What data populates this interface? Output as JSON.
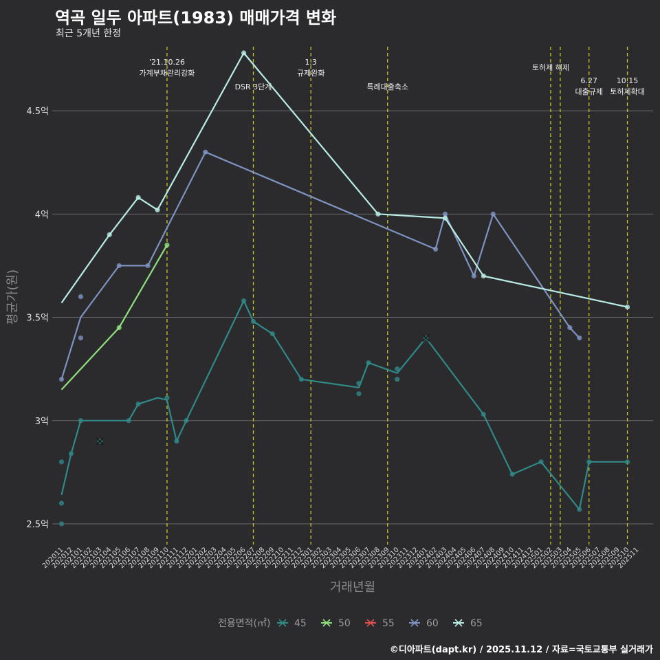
{
  "chart_data": {
    "type": "line",
    "title": "역곡 일두 아파트(1983) 매매가격 변화",
    "subtitle": "최근 5개년 한정",
    "xlabel": "거래년월",
    "ylabel": "평균가(원)",
    "caption": "©디아파트(dapt.kr) / 2025.11.12 / 자료=국토교통부 실거래가",
    "ylim": [
      2.4,
      4.83
    ],
    "yticks": [
      {
        "v": 2.5,
        "label": "2.5억"
      },
      {
        "v": 3.0,
        "label": "3억"
      },
      {
        "v": 3.5,
        "label": "3.5억"
      },
      {
        "v": 4.0,
        "label": "4억"
      },
      {
        "v": 4.5,
        "label": "4.5억"
      }
    ],
    "categories": [
      "202011",
      "202012",
      "202101",
      "202102",
      "202103",
      "202104",
      "202105",
      "202106",
      "202107",
      "202108",
      "202109",
      "202110",
      "202111",
      "202112",
      "202201",
      "202202",
      "202203",
      "202204",
      "202205",
      "202206",
      "202207",
      "202208",
      "202209",
      "202210",
      "202211",
      "202212",
      "202301",
      "202302",
      "202303",
      "202304",
      "202305",
      "202306",
      "202307",
      "202308",
      "202309",
      "202310",
      "202311",
      "202312",
      "202401",
      "202402",
      "202403",
      "202404",
      "202405",
      "202406",
      "202407",
      "202408",
      "202409",
      "202410",
      "202411",
      "202412",
      "202501",
      "202502",
      "202503",
      "202504",
      "202505",
      "202506",
      "202507",
      "202508",
      "202509",
      "202510",
      "202511"
    ],
    "events": [
      {
        "x": 11,
        "label1": "'21.10.26",
        "label2": "가계부채관리강화",
        "row": 1
      },
      {
        "x": 20,
        "label1": "DSR 3단계",
        "label2": "",
        "row": 3
      },
      {
        "x": 26,
        "label1": "1.3",
        "label2": "규제완화",
        "row": 1
      },
      {
        "x": 34,
        "label1": "특례대출축소",
        "label2": "",
        "row": 3
      },
      {
        "x": 51,
        "label1": "토허제 해제",
        "label2": "",
        "row": 2
      },
      {
        "x": 52,
        "label1": "",
        "label2": "",
        "row": 0
      },
      {
        "x": 55,
        "label1": "6.27",
        "label2": "대출규제",
        "row": 4
      },
      {
        "x": 59,
        "label1": "10.15",
        "label2": "토허제확대",
        "row": 4
      }
    ],
    "legend_title": "전용면적(㎡)",
    "series": [
      {
        "name": "45",
        "color": "#2f8a88",
        "line": [
          [
            0,
            2.64
          ],
          [
            1,
            2.84
          ],
          [
            2,
            3.0
          ],
          [
            3,
            3.0
          ],
          [
            4,
            3.0
          ],
          [
            5,
            3.0
          ],
          [
            6,
            3.0
          ],
          [
            7,
            3.0
          ],
          [
            8,
            3.08
          ],
          [
            10,
            3.11
          ],
          [
            11,
            3.1
          ],
          [
            12,
            2.9
          ],
          [
            13,
            3.0
          ],
          [
            19,
            3.58
          ],
          [
            20,
            3.48
          ],
          [
            22,
            3.42
          ],
          [
            25,
            3.2
          ],
          [
            31,
            3.16
          ],
          [
            32,
            3.28
          ],
          [
            35,
            3.23
          ],
          [
            38,
            3.4
          ],
          [
            44,
            3.03
          ],
          [
            47,
            2.74
          ],
          [
            50,
            2.8
          ],
          [
            54,
            2.57
          ],
          [
            55,
            2.8
          ],
          [
            59,
            2.8
          ]
        ],
        "points": [
          [
            0,
            2.8
          ],
          [
            0,
            2.6
          ],
          [
            0,
            2.5
          ],
          [
            1,
            2.84
          ],
          [
            2,
            3.0
          ],
          [
            4,
            2.9
          ],
          [
            7,
            3.0
          ],
          [
            8,
            3.08
          ],
          [
            11,
            3.11
          ],
          [
            12,
            2.9
          ],
          [
            13,
            3.0
          ],
          [
            19,
            3.58
          ],
          [
            20,
            3.48
          ],
          [
            22,
            3.42
          ],
          [
            25,
            3.2
          ],
          [
            31,
            3.18
          ],
          [
            31,
            3.13
          ],
          [
            32,
            3.28
          ],
          [
            35,
            3.25
          ],
          [
            35,
            3.2
          ],
          [
            38,
            3.4
          ],
          [
            44,
            3.03
          ],
          [
            47,
            2.74
          ],
          [
            50,
            2.8
          ],
          [
            54,
            2.57
          ],
          [
            55,
            2.8
          ],
          [
            59,
            2.8
          ]
        ],
        "crosses": [
          [
            4,
            2.9
          ],
          [
            38,
            3.4
          ]
        ]
      },
      {
        "name": "50",
        "color": "#90e080",
        "line": [
          [
            0,
            3.15
          ],
          [
            6,
            3.45
          ],
          [
            11,
            3.85
          ]
        ],
        "points": [
          [
            6,
            3.45
          ],
          [
            11,
            3.85
          ]
        ],
        "crosses": []
      },
      {
        "name": "55",
        "color": "#e05050",
        "line": [],
        "points": [],
        "crosses": []
      },
      {
        "name": "60",
        "color": "#7f93c2",
        "line": [
          [
            0,
            3.2
          ],
          [
            2,
            3.5
          ],
          [
            6,
            3.75
          ],
          [
            9,
            3.75
          ],
          [
            15,
            4.3
          ],
          [
            39,
            3.83
          ],
          [
            40,
            4.0
          ],
          [
            43,
            3.7
          ],
          [
            45,
            4.0
          ],
          [
            53,
            3.45
          ],
          [
            54,
            3.4
          ]
        ],
        "points": [
          [
            0,
            3.2
          ],
          [
            2,
            3.6
          ],
          [
            2,
            3.4
          ],
          [
            6,
            3.75
          ],
          [
            9,
            3.75
          ],
          [
            15,
            4.3
          ],
          [
            39,
            3.83
          ],
          [
            40,
            4.0
          ],
          [
            43,
            3.7
          ],
          [
            45,
            4.0
          ],
          [
            53,
            3.45
          ],
          [
            54,
            3.4
          ]
        ],
        "crosses": []
      },
      {
        "name": "65",
        "color": "#b8ece4",
        "line": [
          [
            0,
            3.57
          ],
          [
            5,
            3.9
          ],
          [
            8,
            4.08
          ],
          [
            10,
            4.02
          ],
          [
            19,
            4.78
          ],
          [
            33,
            4.0
          ],
          [
            40,
            3.98
          ],
          [
            44,
            3.7
          ],
          [
            59,
            3.55
          ]
        ],
        "points": [
          [
            5,
            3.9
          ],
          [
            8,
            4.08
          ],
          [
            10,
            4.02
          ],
          [
            19,
            4.78
          ],
          [
            33,
            4.0
          ],
          [
            40,
            3.98
          ],
          [
            44,
            3.7
          ],
          [
            59,
            3.55
          ]
        ],
        "crosses": []
      }
    ]
  }
}
